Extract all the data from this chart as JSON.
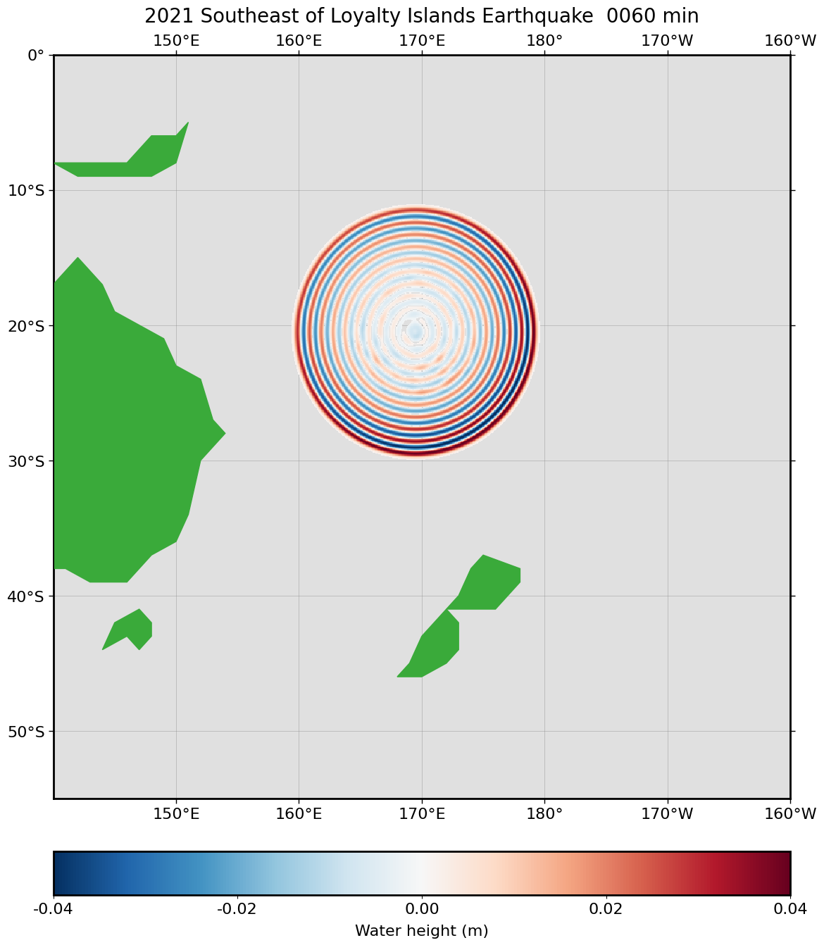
{
  "title": "2021 Southeast of Loyalty Islands Earthquake  0060 min",
  "colorbar_label": "Water height (m)",
  "colorbar_ticks": [
    -0.04,
    -0.02,
    0.0,
    0.02,
    0.04
  ],
  "colorbar_ticklabels": [
    "-0.04",
    "-0.02",
    "0.00",
    "0.02",
    "0.04"
  ],
  "vmin": -0.04,
  "vmax": 0.04,
  "lon_min": 140,
  "lon_max": 200,
  "lat_min": -55,
  "lat_max": 0,
  "lon_ticks": [
    150,
    160,
    170,
    180,
    190,
    200
  ],
  "lon_ticklabels": [
    "150°E",
    "160°E",
    "170°E",
    "180°",
    "170°W",
    "160°W"
  ],
  "lat_ticks": [
    0,
    -10,
    -20,
    -30,
    -40,
    -50
  ],
  "lat_ticklabels": [
    "0°",
    "10°S",
    "20°S",
    "30°S",
    "40°S",
    "50°S"
  ],
  "epicenter_lon": 169.5,
  "epicenter_lat": -20.5,
  "title_fontsize": 20,
  "tick_fontsize": 16,
  "colorbar_fontsize": 16,
  "land_color": "#3aaa3a",
  "ocean_bg": "#e0e0e0",
  "figsize": [
    11.76,
    13.72
  ],
  "dpi": 100
}
